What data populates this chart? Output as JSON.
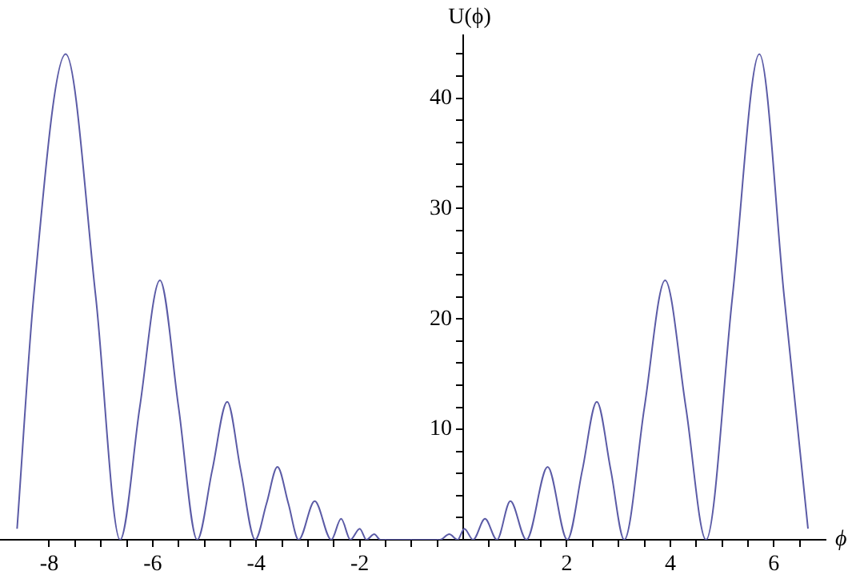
{
  "chart_data": {
    "type": "line",
    "xlabel": "ϕ",
    "ylabel": "U(ϕ)",
    "legend": false,
    "grid": false,
    "marker": "none",
    "line_style": "solid",
    "x": [
      -8.62,
      -8.3,
      -7.68,
      -7.1,
      -6.63,
      -6.25,
      -5.86,
      -5.5,
      -5.14,
      -4.85,
      -4.56,
      -4.3,
      -4.02,
      -3.8,
      -3.59,
      -3.38,
      -3.18,
      -2.87,
      -2.55,
      -2.36,
      -2.18,
      -2.0,
      -1.87,
      -1.72,
      -1.6,
      -0.45,
      -0.27,
      -0.11,
      0.02,
      0.19,
      0.42,
      0.65,
      0.91,
      1.22,
      1.63,
      2.01,
      2.3,
      2.58,
      2.85,
      3.11,
      3.5,
      3.9,
      4.3,
      4.69,
      5.2,
      5.72,
      6.2,
      6.66
    ],
    "series": [
      {
        "color": "#5b5ba6",
        "values": [
          1.0,
          22,
          44,
          22,
          0,
          12,
          23.5,
          12,
          0,
          6.3,
          12.5,
          6.3,
          0,
          3.3,
          6.6,
          3.3,
          0,
          3.5,
          0,
          1.9,
          0,
          1.0,
          0,
          0.5,
          0,
          0,
          0.5,
          0,
          1.0,
          0,
          1.9,
          0,
          3.5,
          0,
          6.6,
          0,
          6.3,
          12.5,
          6.3,
          0,
          12,
          23.5,
          12,
          0,
          22,
          44,
          22,
          1.0
        ]
      }
    ],
    "xlim": [
      -8.95,
      7.0
    ],
    "ylim": [
      0,
      45.7
    ],
    "xticks": [
      -8,
      {
        "value": -7.5,
        "label": null
      },
      {
        "value": -7,
        "label": null
      },
      {
        "value": -6.5,
        "label": null
      },
      -6,
      {
        "value": -5.5,
        "label": null
      },
      {
        "value": -5,
        "label": null
      },
      {
        "value": -4.5,
        "label": null
      },
      -4,
      {
        "value": -3.5,
        "label": null
      },
      {
        "value": -3,
        "label": null
      },
      {
        "value": -2.5,
        "label": null
      },
      -2,
      {
        "value": -1.5,
        "label": null
      },
      {
        "value": -1,
        "label": null
      },
      {
        "value": -0.5,
        "label": null
      },
      {
        "value": 0.5,
        "label": null
      },
      {
        "value": 1,
        "label": null
      },
      {
        "value": 1.5,
        "label": null
      },
      2,
      {
        "value": 2.5,
        "label": null
      },
      {
        "value": 3,
        "label": null
      },
      {
        "value": 3.5,
        "label": null
      },
      4,
      {
        "value": 4.5,
        "label": null
      },
      {
        "value": 5,
        "label": null
      },
      {
        "value": 5.5,
        "label": null
      },
      6,
      {
        "value": 6.5,
        "label": null
      }
    ],
    "yticks": [
      {
        "value": 2,
        "label": null
      },
      {
        "value": 4,
        "label": null
      },
      {
        "value": 6,
        "label": null
      },
      {
        "value": 8,
        "label": null
      },
      10,
      {
        "value": 12,
        "label": null
      },
      {
        "value": 14,
        "label": null
      },
      {
        "value": 16,
        "label": null
      },
      {
        "value": 18,
        "label": null
      },
      20,
      {
        "value": 22,
        "label": null
      },
      {
        "value": 24,
        "label": null
      },
      {
        "value": 26,
        "label": null
      },
      {
        "value": 28,
        "label": null
      },
      30,
      {
        "value": 32,
        "label": null
      },
      {
        "value": 34,
        "label": null
      },
      {
        "value": 36,
        "label": null
      },
      {
        "value": 38,
        "label": null
      },
      40,
      {
        "value": 42,
        "label": null
      },
      {
        "value": 44,
        "label": null
      }
    ]
  }
}
